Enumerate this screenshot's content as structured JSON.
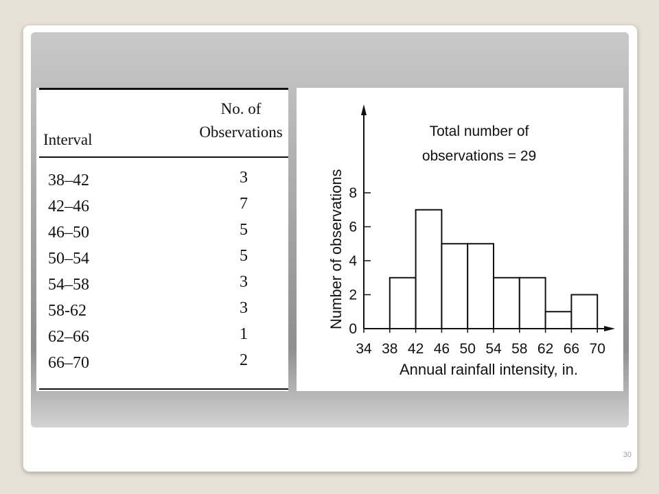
{
  "slide": {
    "page_number": "30"
  },
  "table": {
    "header_interval": "Interval",
    "header_obs_line1": "No. of",
    "header_obs_line2": "Observations",
    "rows": [
      {
        "interval": "38–42",
        "count": "3"
      },
      {
        "interval": "42–46",
        "count": "7"
      },
      {
        "interval": "46–50",
        "count": "5"
      },
      {
        "interval": "50–54",
        "count": "5"
      },
      {
        "interval": "54–58",
        "count": "3"
      },
      {
        "interval": "58-62",
        "count": "3"
      },
      {
        "interval": "62–66",
        "count": "1"
      },
      {
        "interval": "66–70",
        "count": "2"
      }
    ]
  },
  "chart_data": {
    "type": "bar",
    "annotation_line1": "Total number of",
    "annotation_line2": "observations = 29",
    "xlabel": "Annual rainfall intensity, in.",
    "ylabel": "Number of observations",
    "x_ticks": [
      "34",
      "38",
      "42",
      "46",
      "50",
      "54",
      "58",
      "62",
      "66",
      "70"
    ],
    "y_ticks": [
      "0",
      "2",
      "4",
      "6",
      "8"
    ],
    "bins": [
      [
        38,
        42
      ],
      [
        42,
        46
      ],
      [
        46,
        50
      ],
      [
        50,
        54
      ],
      [
        54,
        58
      ],
      [
        58,
        62
      ],
      [
        62,
        66
      ],
      [
        66,
        70
      ]
    ],
    "values": [
      3,
      7,
      5,
      5,
      3,
      3,
      1,
      2
    ],
    "xlim": [
      34,
      70
    ],
    "ylim": [
      0,
      8
    ],
    "grid": false
  }
}
